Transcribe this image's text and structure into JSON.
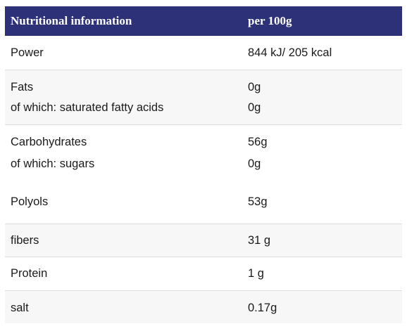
{
  "header": {
    "col1": "Nutritional information",
    "col2": "per 100g"
  },
  "rows": [
    {
      "lines": [
        {
          "label": "Power",
          "value": "844 kJ/ 205 kcal"
        }
      ]
    },
    {
      "lines": [
        {
          "label": "Fats",
          "value": "0g"
        },
        {
          "label": "of which: saturated fatty acids",
          "value": "0g"
        }
      ]
    },
    {
      "lines": [
        {
          "label": "Carbohydrates",
          "value": "56g"
        },
        {
          "label": "of which: sugars",
          "value": "0g"
        }
      ]
    },
    {
      "lines": [
        {
          "label": "Polyols",
          "value": "53g"
        }
      ]
    },
    {
      "lines": [
        {
          "label": "fibers",
          "value": "31 g"
        }
      ]
    },
    {
      "lines": [
        {
          "label": "Protein",
          "value": "1 g"
        }
      ]
    },
    {
      "lines": [
        {
          "label": "salt",
          "value": "0.17g"
        }
      ]
    }
  ]
}
